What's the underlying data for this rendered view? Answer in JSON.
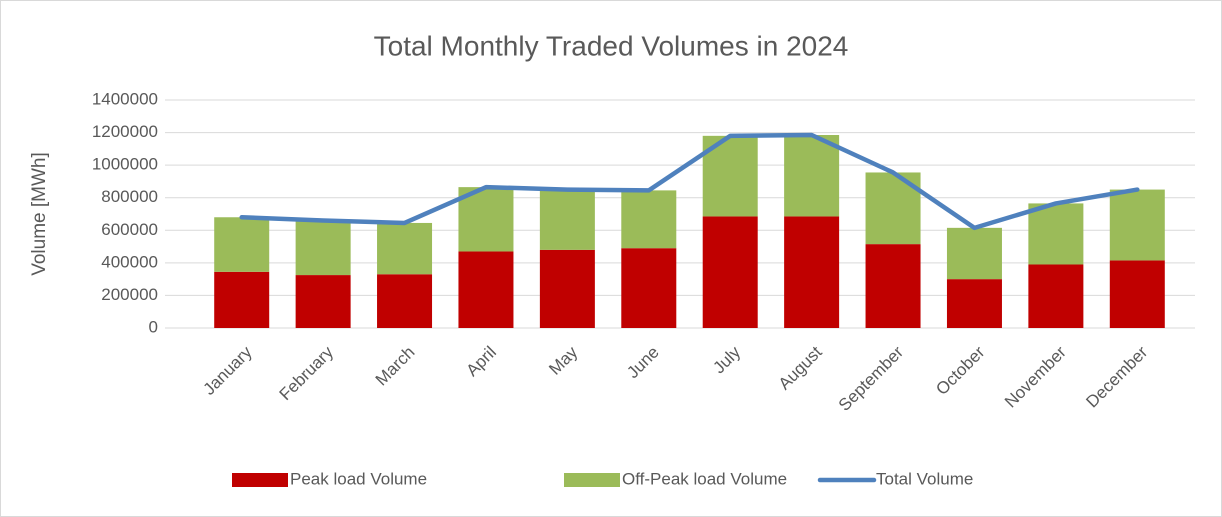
{
  "chart_data": {
    "type": "bar",
    "stacked": true,
    "title": "Total Monthly Traded Volumes in 2024",
    "y_label": "Volume [MWh]",
    "categories": [
      "January",
      "February",
      "March",
      "April",
      "May",
      "June",
      "July",
      "August",
      "September",
      "October",
      "November",
      "December"
    ],
    "series": [
      {
        "name": "Peak load Volume",
        "color": "#c00000",
        "type": "bar",
        "values": [
          345000,
          325000,
          330000,
          470000,
          480000,
          490000,
          685000,
          685000,
          515000,
          300000,
          390000,
          415000
        ]
      },
      {
        "name": "Off-Peak load Volume",
        "color": "#9bbb59",
        "type": "bar",
        "values": [
          335000,
          335000,
          315000,
          395000,
          370000,
          355000,
          495000,
          500000,
          440000,
          315000,
          375000,
          435000
        ]
      },
      {
        "name": "Total Volume",
        "color": "#4f81bd",
        "type": "line",
        "values": [
          680000,
          660000,
          645000,
          865000,
          850000,
          845000,
          1180000,
          1185000,
          955000,
          615000,
          765000,
          850000
        ]
      }
    ],
    "ylim": [
      0,
      1400000
    ],
    "yticks": [
      0,
      200000,
      400000,
      600000,
      800000,
      1000000,
      1200000,
      1400000
    ],
    "grid": true,
    "legend": "bottom"
  }
}
